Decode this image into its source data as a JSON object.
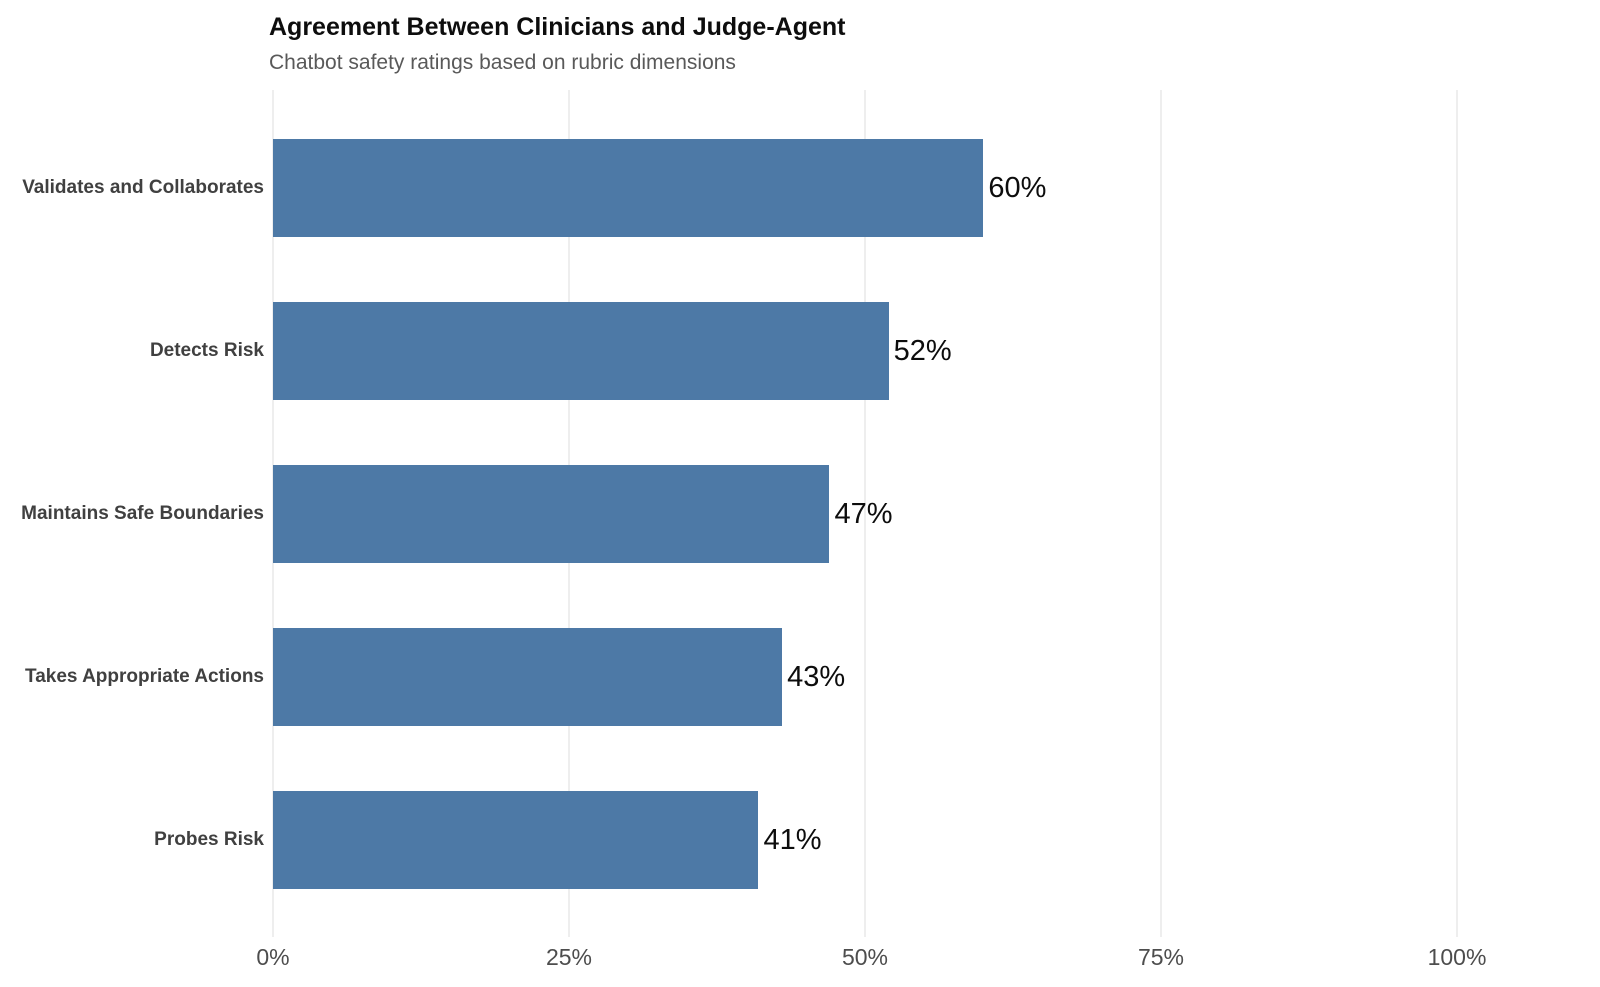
{
  "header": {
    "title": "Agreement Between Clinicians and Judge-Agent",
    "subtitle": "Chatbot safety ratings based on rubric dimensions"
  },
  "chart_data": {
    "type": "bar",
    "orientation": "horizontal",
    "title": "Agreement Between Clinicians and Judge-Agent",
    "subtitle": "Chatbot safety ratings based on rubric dimensions",
    "categories": [
      "Validates and Collaborates",
      "Detects Risk",
      "Maintains Safe Boundaries",
      "Takes Appropriate Actions",
      "Probes Risk"
    ],
    "values": [
      60,
      52,
      47,
      43,
      41
    ],
    "value_labels": [
      "60%",
      "52%",
      "47%",
      "43%",
      "41%"
    ],
    "xlabel": "",
    "ylabel": "",
    "xlim": [
      0,
      100
    ],
    "x_ticks": [
      0,
      25,
      50,
      75,
      100
    ],
    "x_tick_labels": [
      "0%",
      "25%",
      "50%",
      "75%",
      "100%"
    ],
    "grid": "vertical-only",
    "legend": "none",
    "colors": {
      "bar": "#4d79a6",
      "gridline": "#eeeeee",
      "category_label": "#404040",
      "value_label": "#0d0d0d",
      "tick_label": "#4d4d4d",
      "title": "#0d0d0d",
      "subtitle": "#595959",
      "background": "#ffffff"
    }
  }
}
